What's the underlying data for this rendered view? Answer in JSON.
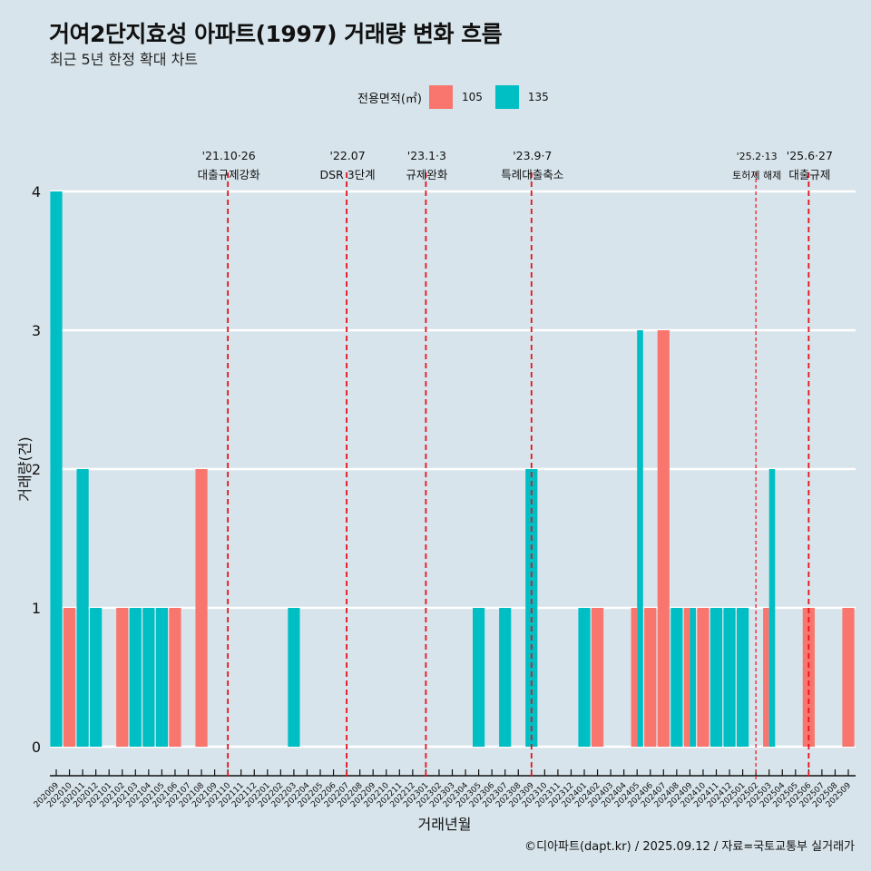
{
  "header": {
    "title": "거여2단지효성 아파트(1997) 거래량 변화 흐름",
    "subtitle": "최근 5년 한정 확대 차트"
  },
  "legend": {
    "title": "전용면적(㎡)",
    "items": [
      {
        "label": "105",
        "color": "#f8766d"
      },
      {
        "label": "135",
        "color": "#00bfc4"
      }
    ]
  },
  "caption": "©디아파트(dapt.kr) / 2025.09.12 / 자료=국토교통부 실거래가",
  "chart_data": {
    "type": "bar",
    "title": "거여2단지효성 아파트(1997) 거래량 변화 흐름",
    "subtitle": "최근 5년 한정 확대 차트",
    "xlabel": "거래년월",
    "ylabel": "거래량(건)",
    "ylim": [
      0,
      4
    ],
    "yticks": [
      0,
      1,
      2,
      3,
      4
    ],
    "grid": true,
    "legend_position": "top",
    "categories": [
      "202009",
      "202010",
      "202011",
      "202012",
      "202101",
      "202102",
      "202103",
      "202104",
      "202105",
      "202106",
      "202107",
      "202108",
      "202109",
      "202110",
      "202111",
      "202112",
      "202201",
      "202202",
      "202203",
      "202204",
      "202205",
      "202206",
      "202207",
      "202208",
      "202209",
      "202210",
      "202211",
      "202212",
      "202301",
      "202302",
      "202303",
      "202304",
      "202305",
      "202306",
      "202307",
      "202308",
      "202309",
      "202310",
      "202311",
      "202312",
      "202401",
      "202402",
      "202403",
      "202404",
      "202405",
      "202406",
      "202407",
      "202408",
      "202409",
      "202410",
      "202411",
      "202412",
      "202501",
      "202502",
      "202503",
      "202504",
      "202505",
      "202506",
      "202507",
      "202508",
      "202509"
    ],
    "series": [
      {
        "name": "105",
        "color": "#f8766d",
        "values": [
          0,
          1,
          0,
          0,
          0,
          1,
          0,
          0,
          0,
          1,
          0,
          2,
          0,
          0,
          0,
          0,
          0,
          0,
          0,
          0,
          0,
          0,
          0,
          0,
          0,
          0,
          0,
          0,
          0,
          0,
          0,
          0,
          0,
          0,
          0,
          0,
          0,
          0,
          0,
          0,
          0,
          1,
          0,
          0,
          1,
          1,
          3,
          0,
          1,
          1,
          0,
          0,
          0,
          0,
          1,
          0,
          0,
          1,
          0,
          0,
          1
        ]
      },
      {
        "name": "135",
        "color": "#00bfc4",
        "values": [
          4,
          0,
          2,
          1,
          0,
          0,
          1,
          1,
          1,
          0,
          0,
          0,
          0,
          0,
          0,
          0,
          0,
          0,
          1,
          0,
          0,
          0,
          0,
          0,
          0,
          0,
          0,
          0,
          0,
          0,
          0,
          0,
          1,
          0,
          1,
          0,
          2,
          0,
          0,
          0,
          1,
          0,
          0,
          0,
          3,
          0,
          0,
          1,
          1,
          0,
          1,
          1,
          1,
          0,
          2,
          0,
          0,
          0,
          0,
          0,
          0
        ]
      }
    ],
    "annotations": [
      {
        "x": "202110",
        "date": "'21.10·26",
        "label": "대출규제강화",
        "style": "dashed"
      },
      {
        "x": "202207",
        "date": "'22.07",
        "label": "DSR 3단계",
        "style": "dashed"
      },
      {
        "x": "202301",
        "date": "'23.1·3",
        "label": "규제완화",
        "style": "dashed"
      },
      {
        "x": "202309",
        "date": "'23.9·7",
        "label": "특례대출축소",
        "style": "dashed"
      },
      {
        "x": "202502",
        "date": "'25.2·13",
        "label": "토허제 해제",
        "style": "dotted"
      },
      {
        "x": "202506",
        "date": "'25.6·27",
        "label": "대출규제",
        "style": "dashed"
      }
    ]
  }
}
